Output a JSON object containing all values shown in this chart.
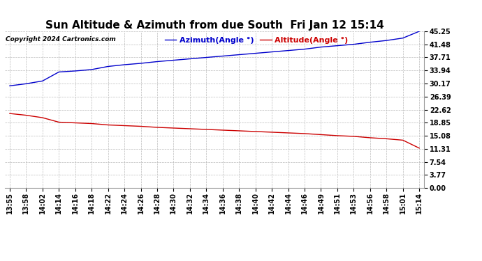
{
  "title": "Sun Altitude & Azimuth from due South  Fri Jan 12 15:14",
  "copyright": "Copyright 2024 Cartronics.com",
  "legend_azimuth": "Azimuth(Angle °)",
  "legend_altitude": "Altitude(Angle °)",
  "azimuth_color": "#0000cc",
  "altitude_color": "#cc0000",
  "background_color": "#ffffff",
  "grid_color": "#bbbbbb",
  "yticks": [
    0.0,
    3.77,
    7.54,
    11.31,
    15.08,
    18.85,
    22.62,
    26.39,
    30.17,
    33.94,
    37.71,
    41.48,
    45.25
  ],
  "xtick_labels": [
    "13:55",
    "13:58",
    "14:02",
    "14:14",
    "14:16",
    "14:18",
    "14:22",
    "14:24",
    "14:26",
    "14:28",
    "14:30",
    "14:32",
    "14:34",
    "14:36",
    "14:38",
    "14:40",
    "14:42",
    "14:44",
    "14:46",
    "14:49",
    "14:51",
    "14:53",
    "14:56",
    "14:58",
    "15:01",
    "15:14"
  ],
  "azimuth_values": [
    29.5,
    30.1,
    30.9,
    33.5,
    33.8,
    34.2,
    35.1,
    35.6,
    36.0,
    36.5,
    36.9,
    37.3,
    37.7,
    38.1,
    38.5,
    38.9,
    39.3,
    39.7,
    40.1,
    40.7,
    41.1,
    41.5,
    42.1,
    42.6,
    43.3,
    45.25
  ],
  "altitude_values": [
    21.5,
    21.0,
    20.3,
    19.0,
    18.8,
    18.6,
    18.2,
    18.0,
    17.8,
    17.5,
    17.3,
    17.1,
    16.9,
    16.7,
    16.5,
    16.3,
    16.1,
    15.9,
    15.7,
    15.4,
    15.1,
    14.9,
    14.5,
    14.2,
    13.8,
    11.5
  ],
  "ylim": [
    0.0,
    45.25
  ],
  "title_fontsize": 11,
  "tick_fontsize": 7,
  "legend_fontsize": 8,
  "copyright_fontsize": 6.5
}
